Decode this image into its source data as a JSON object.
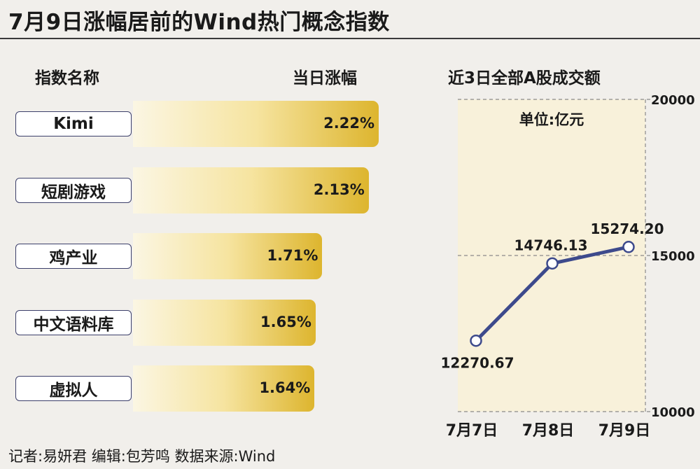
{
  "title": "7月9日涨幅居前的Wind热门概念指数",
  "left": {
    "col_name_header": "指数名称",
    "col_value_header": "当日涨幅"
  },
  "right": {
    "header": "近3日全部A股成交额",
    "unit": "单位:亿元"
  },
  "footer": "记者:易妍君   编辑:包芳鸣   数据来源:Wind",
  "chart_data": [
    {
      "type": "bar",
      "orientation": "horizontal",
      "categories": [
        "Kimi",
        "短剧游戏",
        "鸡产业",
        "中文语料库",
        "虚拟人"
      ],
      "values": [
        2.22,
        2.13,
        1.71,
        1.65,
        1.64
      ],
      "value_labels": [
        "2.22%",
        "2.13%",
        "1.71%",
        "1.65%",
        "1.64%"
      ]
    },
    {
      "type": "line",
      "categories": [
        "7月7日",
        "7月8日",
        "7月9日"
      ],
      "values": [
        12270.67,
        14746.13,
        15274.2
      ],
      "value_labels": [
        "12270.67",
        "14746.13",
        "15274.20"
      ],
      "ylim": [
        10000,
        20000
      ],
      "y_ticks": [
        "10000",
        "15000",
        "20000"
      ],
      "grid": true,
      "colors": {
        "line": "#3d4a8c",
        "point_fill": "#ffffff",
        "plot_bg": "#f8f1da"
      }
    }
  ]
}
